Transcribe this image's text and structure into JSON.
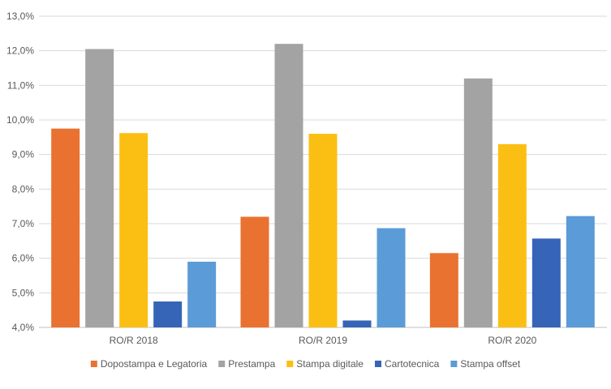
{
  "chart_data": {
    "type": "bar",
    "title": "",
    "xlabel": "",
    "ylabel": "",
    "categories": [
      "RO/R 2018",
      "RO/R 2019",
      "RO/R 2020"
    ],
    "ylim": [
      4.0,
      13.0
    ],
    "yticks": [
      4.0,
      5.0,
      6.0,
      7.0,
      8.0,
      9.0,
      10.0,
      11.0,
      12.0,
      13.0
    ],
    "ytick_labels": [
      "4,0%",
      "5,0%",
      "6,0%",
      "7,0%",
      "8,0%",
      "9,0%",
      "10,0%",
      "11,0%",
      "12,0%",
      "13,0%"
    ],
    "grid": true,
    "legend_position": "bottom",
    "series": [
      {
        "name": "Dopostampa e Legatoria",
        "color": "#e97231",
        "values": [
          9.75,
          7.2,
          6.15
        ]
      },
      {
        "name": "Prestampa",
        "color": "#a3a3a3",
        "values": [
          12.05,
          12.2,
          11.2
        ]
      },
      {
        "name": "Stampa digitale",
        "color": "#fbbf14",
        "values": [
          9.62,
          9.6,
          9.3
        ]
      },
      {
        "name": "Cartotecnica",
        "color": "#3664b7",
        "values": [
          4.75,
          4.2,
          6.57
        ]
      },
      {
        "name": "Stampa offset",
        "color": "#5b9bd7",
        "values": [
          5.9,
          6.87,
          7.22
        ]
      }
    ]
  }
}
